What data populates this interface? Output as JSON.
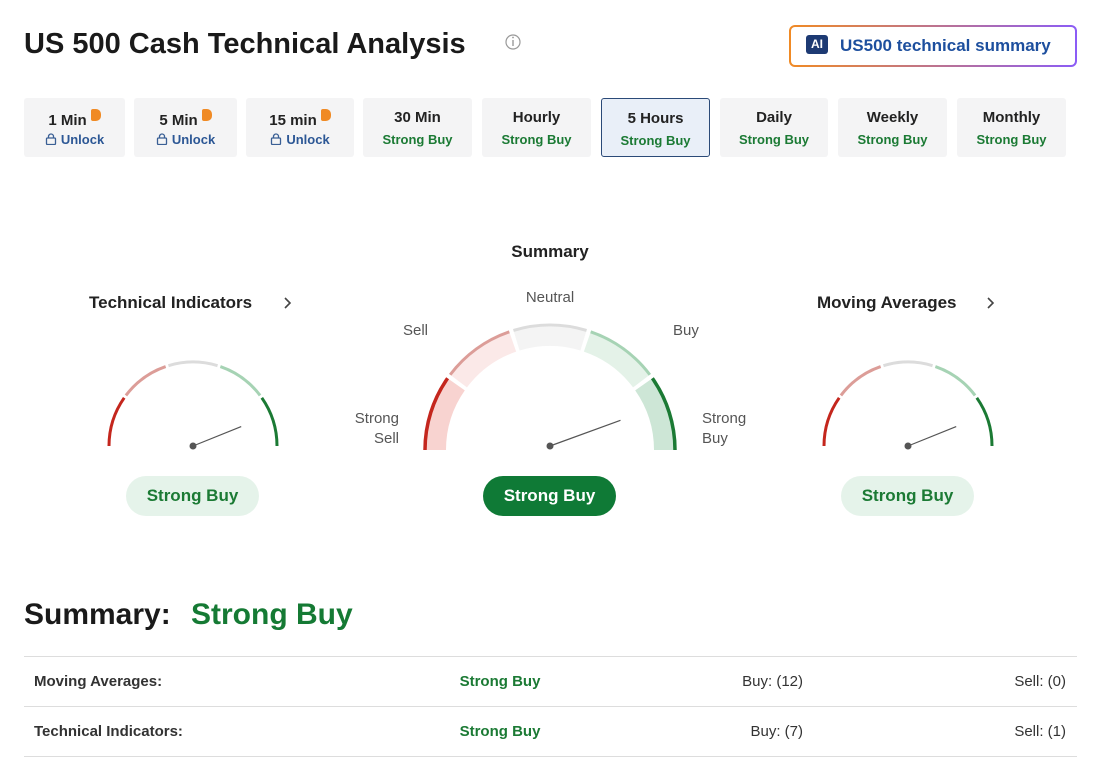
{
  "header": {
    "title": "US 500 Cash Technical Analysis",
    "ai_badge": "AI",
    "summary_button": "US500 technical summary"
  },
  "timeframes": [
    {
      "label": "1 Min",
      "status": "Unlock",
      "locked": true,
      "selected": false
    },
    {
      "label": "5 Min",
      "status": "Unlock",
      "locked": true,
      "selected": false
    },
    {
      "label": "15 min",
      "status": "Unlock",
      "locked": true,
      "selected": false
    },
    {
      "label": "30 Min",
      "status": "Strong Buy",
      "locked": false,
      "selected": false
    },
    {
      "label": "Hourly",
      "status": "Strong Buy",
      "locked": false,
      "selected": false
    },
    {
      "label": "5 Hours",
      "status": "Strong Buy",
      "locked": false,
      "selected": true
    },
    {
      "label": "Daily",
      "status": "Strong Buy",
      "locked": false,
      "selected": false
    },
    {
      "label": "Weekly",
      "status": "Strong Buy",
      "locked": false,
      "selected": false
    },
    {
      "label": "Monthly",
      "status": "Strong Buy",
      "locked": false,
      "selected": false
    }
  ],
  "gauges": {
    "technical_indicators": {
      "title": "Technical Indicators",
      "result": "Strong Buy"
    },
    "summary": {
      "title": "Summary",
      "labels": {
        "strong_sell": "Strong Sell",
        "sell": "Sell",
        "neutral": "Neutral",
        "buy": "Buy",
        "strong_buy": "Strong Buy"
      },
      "result": "Strong Buy"
    },
    "moving_averages": {
      "title": "Moving Averages",
      "result": "Strong Buy"
    }
  },
  "summary": {
    "label": "Summary:",
    "value": "Strong Buy",
    "rows": [
      {
        "name": "Moving Averages:",
        "signal": "Strong Buy",
        "buy": "Buy: (12)",
        "sell": "Sell: (0)"
      },
      {
        "name": "Technical Indicators:",
        "signal": "Strong Buy",
        "buy": "Buy: (7)",
        "sell": "Sell: (1)"
      }
    ]
  }
}
